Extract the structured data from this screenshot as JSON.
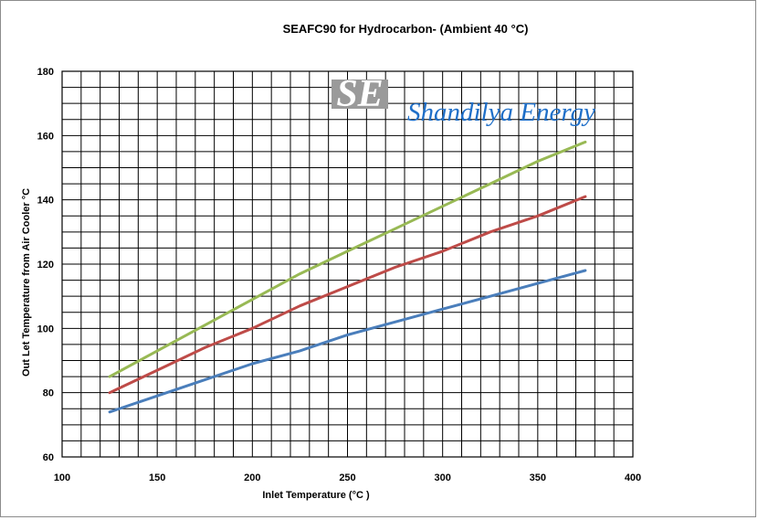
{
  "chart_data": {
    "type": "line",
    "title": "SEAFC90 for  Hydrocarbon- (Ambient 40 °C)",
    "xlabel": "Inlet Temperature (°C )",
    "ylabel": "Out Let Temperature from Air Cooler °C",
    "xlim": [
      100,
      400
    ],
    "ylim": [
      60,
      180
    ],
    "x_ticks": [
      100,
      150,
      200,
      250,
      300,
      350,
      400
    ],
    "y_ticks": [
      60,
      80,
      100,
      120,
      140,
      160,
      180
    ],
    "grid": true,
    "legend": "none",
    "series": [
      {
        "color": "#4a7ebb",
        "x": [
          125,
          150,
          175,
          200,
          225,
          250,
          275,
          300,
          325,
          350,
          375
        ],
        "y": [
          74,
          79,
          84,
          89,
          93,
          98,
          102,
          106,
          110,
          114,
          118
        ]
      },
      {
        "color": "#be4b48",
        "x": [
          125,
          150,
          175,
          200,
          225,
          250,
          275,
          300,
          325,
          350,
          375
        ],
        "y": [
          80,
          87,
          94,
          100,
          107,
          113,
          119,
          124,
          130,
          135,
          141
        ]
      },
      {
        "color": "#98b954",
        "x": [
          125,
          150,
          175,
          200,
          225,
          250,
          275,
          300,
          325,
          350,
          375
        ],
        "y": [
          85,
          93,
          101,
          109,
          117,
          124,
          131,
          138,
          145,
          152,
          158
        ]
      }
    ]
  },
  "watermark": {
    "logo_text": "SE",
    "brand_text": "Shandilya Energy",
    "brand_color": "#1f6fc8"
  }
}
